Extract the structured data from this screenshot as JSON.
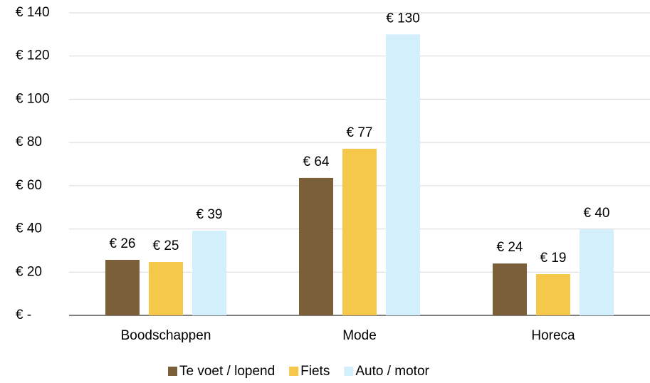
{
  "chart_data": {
    "type": "bar",
    "categories": [
      "Boodschappen",
      "Mode",
      "Horeca"
    ],
    "series": [
      {
        "name": "Te voet / lopend",
        "color": "#7b5e3a",
        "values": [
          25.7,
          63.6,
          24
        ],
        "value_labels": [
          "€ 26",
          "€ 64",
          "€ 24"
        ]
      },
      {
        "name": "Fiets",
        "color": "#f5c84c",
        "values": [
          24.7,
          77.1,
          19.1
        ],
        "value_labels": [
          "€ 25",
          "€ 77",
          "€ 19"
        ]
      },
      {
        "name": "Auto / motor",
        "color": "#d4effc",
        "values": [
          39.2,
          130,
          39.9
        ],
        "value_labels": [
          "€ 39",
          "€ 130",
          "€ 40"
        ]
      }
    ],
    "ylim": [
      0,
      140
    ],
    "yticks": [
      {
        "value": 0,
        "label": "€ -"
      },
      {
        "value": 20,
        "label": "€ 20"
      },
      {
        "value": 40,
        "label": "€ 40"
      },
      {
        "value": 60,
        "label": "€ 60"
      },
      {
        "value": 80,
        "label": "€ 80"
      },
      {
        "value": 100,
        "label": "€ 100"
      },
      {
        "value": 120,
        "label": "€ 120"
      },
      {
        "value": 140,
        "label": "€ 140"
      }
    ],
    "grid": true,
    "legend": "bottom"
  }
}
